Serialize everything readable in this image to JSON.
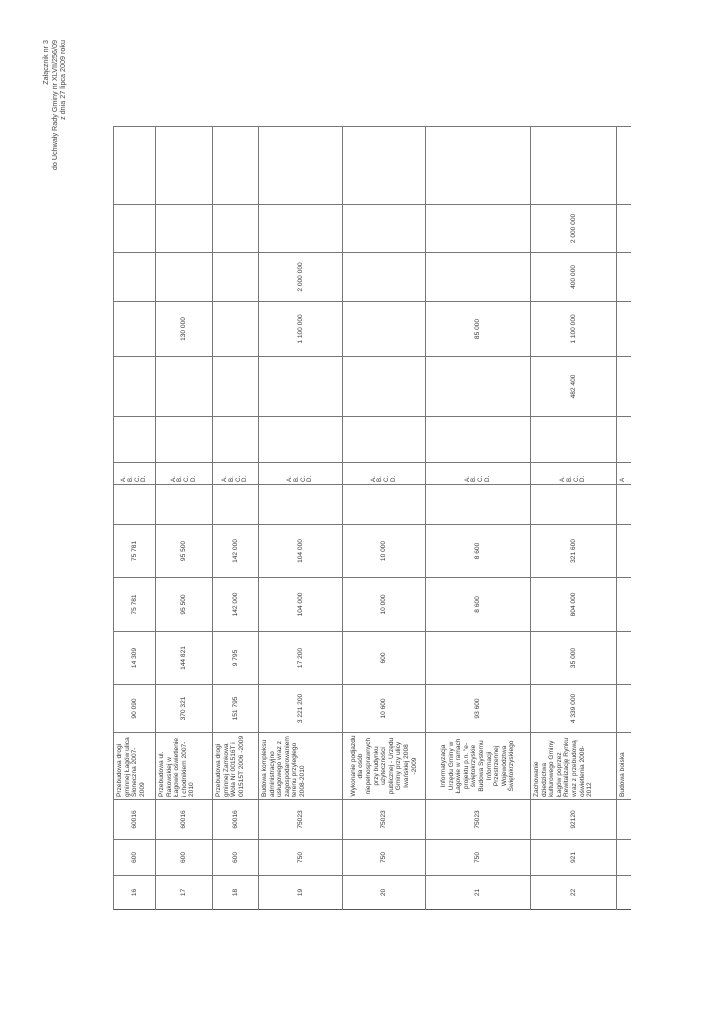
{
  "header": {
    "line1": "Załącznik nr 3",
    "line2": "do Uchwały Rady Gminy nr XLVII/256/09",
    "line3": "z dnia 27 lipca 2009 roku"
  },
  "rows": [
    {
      "lp": "16",
      "dzial": "600",
      "rozdzial": "60016",
      "name": "Przebudowa drogi gminnej Łagów ulica Słoneczna 2007-2009",
      "total": "90 090",
      "c1": "14 309",
      "c2": "75 781",
      "c3": "75 781",
      "c4": "",
      "abcd": "A. B. C. D.",
      "c5": "",
      "c6": "",
      "c7": "",
      "c8": "",
      "c9": "",
      "c10": ""
    },
    {
      "lp": "17",
      "dzial": "600",
      "rozdzial": "60016",
      "name": "Przebudowa ul. Rakowskiej w Łagowie oświetlenie i chodnikiem 2007-2010",
      "total": "370 321",
      "c1": "144 821",
      "c2": "95 500",
      "c3": "95 500",
      "c4": "",
      "abcd": "A. B. C. D.",
      "c5": "",
      "c6": "",
      "c7": "130 000",
      "c8": "",
      "c9": "",
      "c10": ""
    },
    {
      "lp": "18",
      "dzial": "600",
      "rozdzial": "60016",
      "name": "Przebudowa drogi gminnej Zamkowa Wola Nr 001516T i 001515T 2006 -2009",
      "total": "151 795",
      "c1": "9 795",
      "c2": "142 000",
      "c3": "142 000",
      "c4": "",
      "abcd": "A. B. C. D.",
      "c5": "",
      "c6": "",
      "c7": "",
      "c8": "",
      "c9": "",
      "c10": ""
    },
    {
      "lp": "19",
      "dzial": "750",
      "rozdzial": "75023",
      "name": "Budowa kompleksu administracyjno usługowego wraz z zagospodarowaniem terenu przyległego 2008-2010",
      "total": "3 221 200",
      "c1": "17 200",
      "c2": "104 000",
      "c3": "104 000",
      "c4": "",
      "abcd": "A. B. C. D.",
      "c5": "",
      "c6": "",
      "c7": "1 100 000",
      "c8": "2 000 000",
      "c9": "",
      "c10": ""
    },
    {
      "lp": "20",
      "dzial": "750",
      "rozdzial": "75023",
      "name": "Wykonanie podjazdu dla osób niepełnosprawnych przy budynku użyteczności publicznej - Urzędu Gminy przy ulicy Iwańskiej 2008 -2009",
      "total": "10 600",
      "c1": "600",
      "c2": "10 000",
      "c3": "10 000",
      "c4": "",
      "abcd": "A. B. C. D.",
      "c5": "",
      "c6": "",
      "c7": "",
      "c8": "",
      "c9": "",
      "c10": ""
    },
    {
      "lp": "21",
      "dzial": "750",
      "rozdzial": "75023",
      "name": "Informatyzacja Urzędu Gminy w Łagowie w ramach projektu p.n. \"e-świętokrzyskie Budowa Systemu Informacji Przestrzennej Województwa Świętokrzyskiego",
      "total": "93 600",
      "c1": "",
      "c2": "8 600",
      "c3": "8 600",
      "c4": "",
      "abcd": "A. B. C. D.",
      "c5": "",
      "c6": "",
      "c7": "85 000",
      "c8": "",
      "c9": "",
      "c10": ""
    },
    {
      "lp": "22",
      "dzial": "921",
      "rozdzial": "92120",
      "name": "Zachowanie dziedzictwa kulturowego Gminy Łagów poprzez Rewitalizację Rynku wraz z przebudową oświetlenia 2008-2012",
      "total": "4 339 000",
      "c1": "35 000",
      "c2": "804 000",
      "c3": "321 600",
      "c4": "",
      "abcd": "A. B. C. D.",
      "c5": "",
      "c6": "482 400",
      "c7": "1 100 000",
      "c8": "400 000",
      "c9": "2 000 000",
      "c10": ""
    },
    {
      "lp": "",
      "dzial": "",
      "rozdzial": "",
      "name": "Budowa boiska",
      "total": "",
      "c1": "",
      "c2": "",
      "c3": "",
      "c4": "",
      "abcd": "A",
      "c5": "",
      "c6": "",
      "c7": "",
      "c8": "",
      "c9": "",
      "c10": ""
    }
  ]
}
